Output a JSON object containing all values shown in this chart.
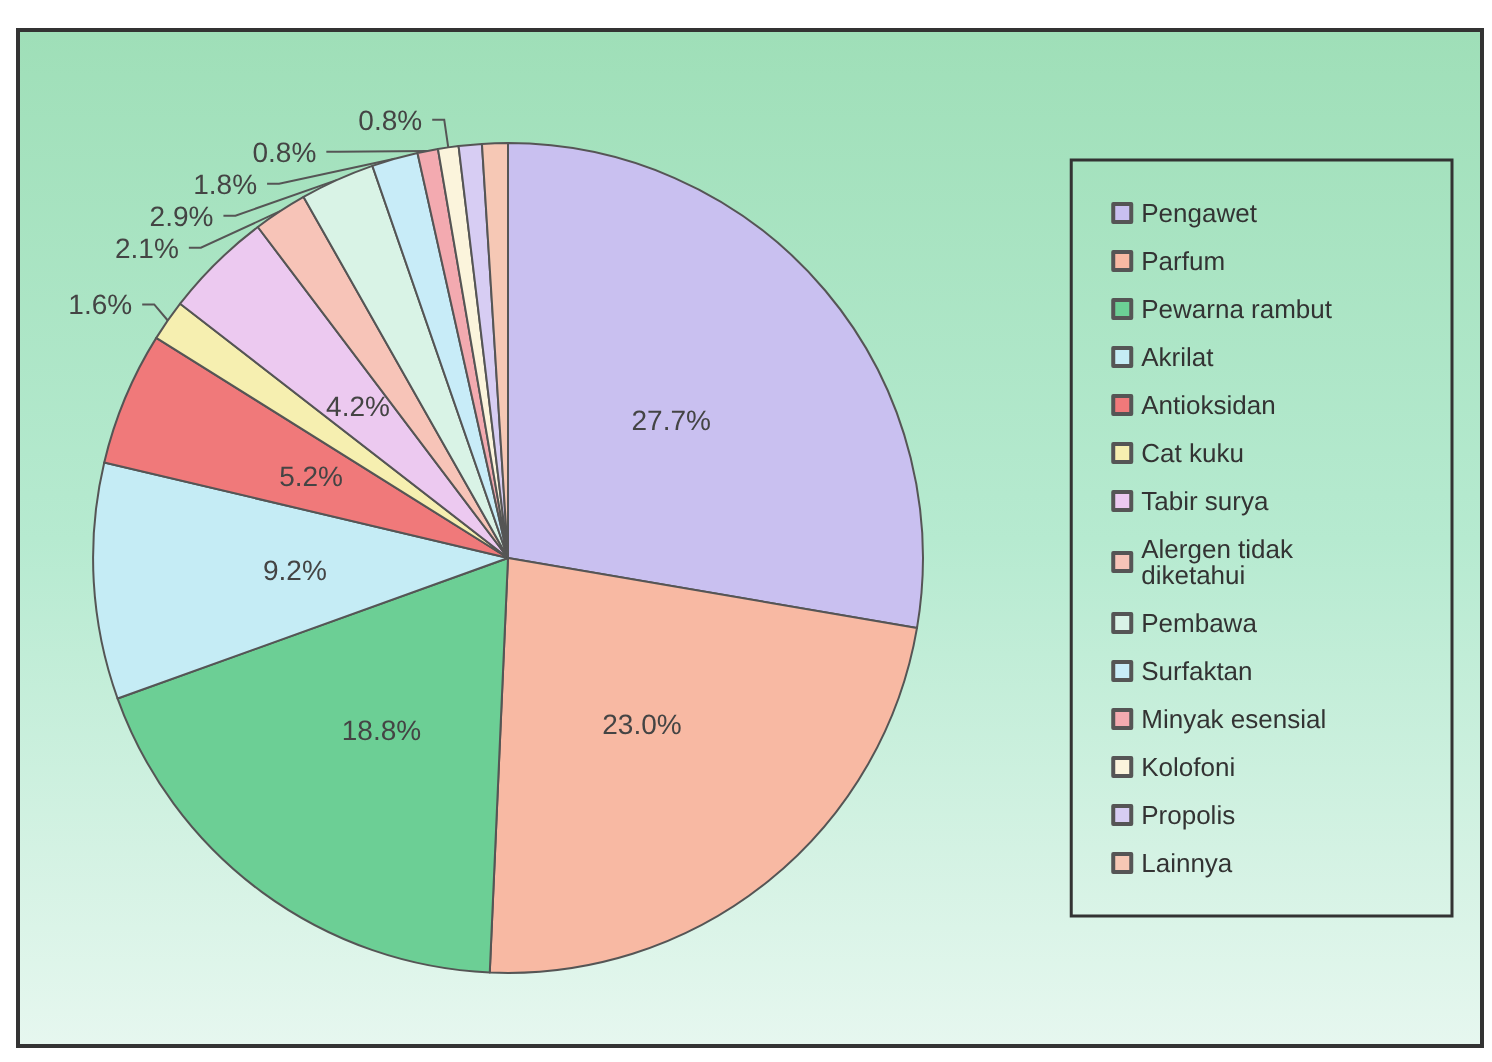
{
  "chart_data": {
    "type": "pie",
    "categories": [
      "Pengawet",
      "Parfum",
      "Pewarna rambut",
      "Akrilat",
      "Antioksidan",
      "Cat kuku",
      "Tabir surya",
      "Alergen tidak diketahui",
      "Pembawa",
      "Surfaktan",
      "Minyak esensial",
      "Kolofoni",
      "Propolis",
      "Lainnya"
    ],
    "values": [
      27.7,
      23.0,
      18.8,
      9.2,
      5.2,
      1.6,
      4.2,
      2.1,
      2.9,
      1.8,
      0.8,
      0.8,
      0.9,
      1.0
    ],
    "value_labels": [
      "27.7%",
      "23.0%",
      "18.8%",
      "9.2%",
      "5.2%",
      "1.6%",
      "4.2%",
      "2.1%",
      "2.9%",
      "1.8%",
      "0.8%",
      "0.8%",
      null,
      null
    ],
    "colors": [
      "#c9c0f0",
      "#f8b9a3",
      "#6ccf95",
      "#c5ecf5",
      "#f0797a",
      "#f6efb0",
      "#ecc9f0",
      "#f7c4b8",
      "#d9f3e6",
      "#c8ecf8",
      "#f3aab0",
      "#fbf4dc",
      "#d7cdf3",
      "#f6c8b5"
    ],
    "legend": "right"
  }
}
